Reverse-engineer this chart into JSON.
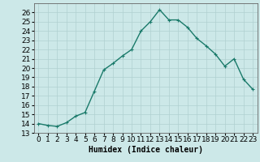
{
  "x": [
    0,
    1,
    2,
    3,
    4,
    5,
    6,
    7,
    8,
    9,
    10,
    11,
    12,
    13,
    14,
    15,
    16,
    17,
    18,
    19,
    20,
    21,
    22,
    23
  ],
  "y": [
    14.0,
    13.8,
    13.7,
    14.1,
    14.8,
    15.2,
    17.5,
    19.8,
    20.5,
    21.3,
    22.0,
    24.0,
    25.0,
    26.3,
    25.2,
    25.2,
    24.4,
    23.2,
    22.4,
    21.5,
    20.2,
    21.0,
    18.8,
    17.7
  ],
  "line_color": "#1a7a6a",
  "marker": "+",
  "bg_color": "#cce8e8",
  "grid_color": "#b0d0d0",
  "xlabel": "Humidex (Indice chaleur)",
  "xlim": [
    -0.5,
    23.5
  ],
  "ylim": [
    13,
    27
  ],
  "yticks": [
    13,
    14,
    15,
    16,
    17,
    18,
    19,
    20,
    21,
    22,
    23,
    24,
    25,
    26
  ],
  "xticks": [
    0,
    1,
    2,
    3,
    4,
    5,
    6,
    7,
    8,
    9,
    10,
    11,
    12,
    13,
    14,
    15,
    16,
    17,
    18,
    19,
    20,
    21,
    22,
    23
  ],
  "label_fontsize": 7,
  "tick_fontsize": 6.5
}
